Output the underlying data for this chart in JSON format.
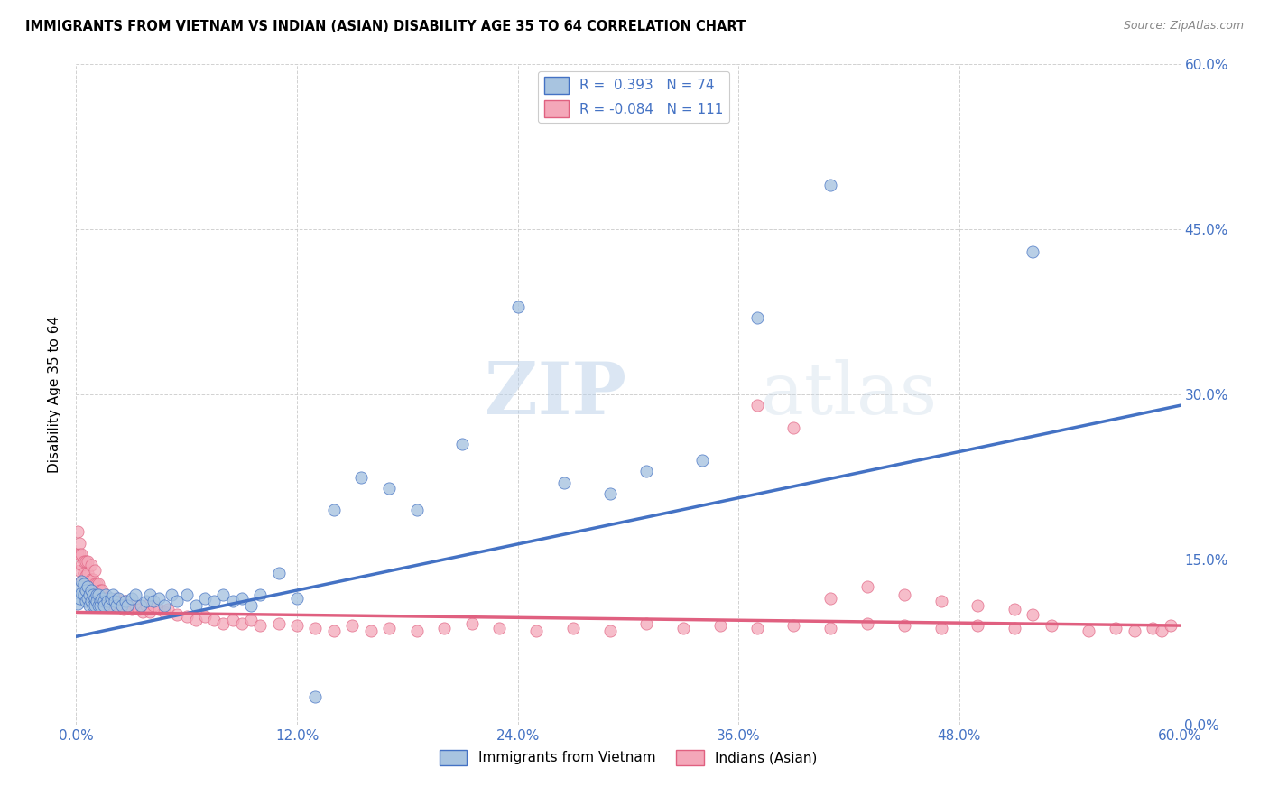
{
  "title": "IMMIGRANTS FROM VIETNAM VS INDIAN (ASIAN) DISABILITY AGE 35 TO 64 CORRELATION CHART",
  "source": "Source: ZipAtlas.com",
  "ylabel_label": "Disability Age 35 to 64",
  "legend_label1": "Immigrants from Vietnam",
  "legend_label2": "Indians (Asian)",
  "R1": 0.393,
  "N1": 74,
  "R2": -0.084,
  "N2": 111,
  "xlim": [
    0.0,
    0.6
  ],
  "ylim": [
    0.0,
    0.6
  ],
  "x_ticks": [
    0.0,
    0.12,
    0.24,
    0.36,
    0.48,
    0.6
  ],
  "y_ticks": [
    0.0,
    0.15,
    0.3,
    0.45,
    0.6
  ],
  "x_tick_labels": [
    "0.0%",
    "12.0%",
    "24.0%",
    "36.0%",
    "48.0%",
    "60.0%"
  ],
  "y_tick_labels_right": [
    "0.0%",
    "15.0%",
    "30.0%",
    "45.0%",
    "60.0%"
  ],
  "color_vietnam": "#a8c4e0",
  "color_indian": "#f4a7b9",
  "line_color_vietnam": "#4472c4",
  "line_color_indian": "#e06080",
  "watermark_zip": "ZIP",
  "watermark_atlas": "atlas",
  "regression_vietnam": [
    0.08,
    0.29
  ],
  "regression_indian": [
    0.102,
    0.09
  ],
  "vietnam_x": [
    0.001,
    0.002,
    0.002,
    0.003,
    0.003,
    0.004,
    0.004,
    0.005,
    0.005,
    0.006,
    0.006,
    0.007,
    0.007,
    0.008,
    0.008,
    0.009,
    0.009,
    0.01,
    0.01,
    0.011,
    0.011,
    0.012,
    0.012,
    0.013,
    0.013,
    0.014,
    0.015,
    0.015,
    0.016,
    0.017,
    0.018,
    0.019,
    0.02,
    0.021,
    0.022,
    0.023,
    0.025,
    0.027,
    0.028,
    0.03,
    0.032,
    0.035,
    0.038,
    0.04,
    0.042,
    0.045,
    0.048,
    0.052,
    0.055,
    0.06,
    0.065,
    0.07,
    0.075,
    0.08,
    0.085,
    0.09,
    0.095,
    0.1,
    0.11,
    0.12,
    0.13,
    0.14,
    0.155,
    0.17,
    0.185,
    0.21,
    0.24,
    0.265,
    0.29,
    0.31,
    0.34,
    0.37,
    0.41,
    0.52
  ],
  "vietnam_y": [
    0.11,
    0.125,
    0.115,
    0.12,
    0.13,
    0.118,
    0.128,
    0.112,
    0.122,
    0.115,
    0.125,
    0.118,
    0.108,
    0.122,
    0.112,
    0.118,
    0.108,
    0.115,
    0.108,
    0.118,
    0.112,
    0.108,
    0.118,
    0.112,
    0.108,
    0.115,
    0.112,
    0.108,
    0.118,
    0.112,
    0.108,
    0.115,
    0.118,
    0.112,
    0.108,
    0.115,
    0.108,
    0.112,
    0.108,
    0.115,
    0.118,
    0.108,
    0.112,
    0.118,
    0.112,
    0.115,
    0.108,
    0.118,
    0.112,
    0.118,
    0.108,
    0.115,
    0.112,
    0.118,
    0.112,
    0.115,
    0.108,
    0.118,
    0.138,
    0.115,
    0.025,
    0.195,
    0.225,
    0.215,
    0.195,
    0.255,
    0.38,
    0.22,
    0.21,
    0.23,
    0.24,
    0.37,
    0.49,
    0.43
  ],
  "indian_x": [
    0.001,
    0.001,
    0.002,
    0.002,
    0.002,
    0.003,
    0.003,
    0.003,
    0.004,
    0.004,
    0.004,
    0.005,
    0.005,
    0.005,
    0.006,
    0.006,
    0.006,
    0.007,
    0.007,
    0.008,
    0.008,
    0.008,
    0.009,
    0.009,
    0.01,
    0.01,
    0.01,
    0.011,
    0.011,
    0.012,
    0.012,
    0.013,
    0.013,
    0.014,
    0.014,
    0.015,
    0.015,
    0.016,
    0.016,
    0.017,
    0.018,
    0.019,
    0.02,
    0.021,
    0.022,
    0.023,
    0.025,
    0.026,
    0.027,
    0.028,
    0.03,
    0.032,
    0.034,
    0.036,
    0.038,
    0.04,
    0.042,
    0.045,
    0.048,
    0.05,
    0.055,
    0.06,
    0.065,
    0.07,
    0.075,
    0.08,
    0.085,
    0.09,
    0.095,
    0.1,
    0.11,
    0.12,
    0.13,
    0.14,
    0.15,
    0.16,
    0.17,
    0.185,
    0.2,
    0.215,
    0.23,
    0.25,
    0.27,
    0.29,
    0.31,
    0.33,
    0.35,
    0.37,
    0.39,
    0.41,
    0.43,
    0.45,
    0.47,
    0.49,
    0.51,
    0.53,
    0.55,
    0.565,
    0.575,
    0.585,
    0.59,
    0.595,
    0.37,
    0.39,
    0.41,
    0.43,
    0.45,
    0.47,
    0.49,
    0.51,
    0.52
  ],
  "indian_y": [
    0.175,
    0.155,
    0.155,
    0.14,
    0.165,
    0.145,
    0.13,
    0.155,
    0.138,
    0.125,
    0.148,
    0.135,
    0.148,
    0.125,
    0.138,
    0.122,
    0.148,
    0.128,
    0.118,
    0.132,
    0.118,
    0.145,
    0.122,
    0.132,
    0.118,
    0.128,
    0.14,
    0.118,
    0.128,
    0.118,
    0.128,
    0.112,
    0.122,
    0.112,
    0.122,
    0.115,
    0.108,
    0.115,
    0.108,
    0.115,
    0.108,
    0.112,
    0.108,
    0.112,
    0.115,
    0.108,
    0.112,
    0.105,
    0.112,
    0.108,
    0.105,
    0.108,
    0.105,
    0.102,
    0.108,
    0.102,
    0.108,
    0.105,
    0.102,
    0.105,
    0.1,
    0.098,
    0.095,
    0.098,
    0.095,
    0.092,
    0.095,
    0.092,
    0.095,
    0.09,
    0.092,
    0.09,
    0.088,
    0.085,
    0.09,
    0.085,
    0.088,
    0.085,
    0.088,
    0.092,
    0.088,
    0.085,
    0.088,
    0.085,
    0.092,
    0.088,
    0.09,
    0.088,
    0.09,
    0.088,
    0.092,
    0.09,
    0.088,
    0.09,
    0.088,
    0.09,
    0.085,
    0.088,
    0.085,
    0.088,
    0.085,
    0.09,
    0.29,
    0.27,
    0.115,
    0.125,
    0.118,
    0.112,
    0.108,
    0.105,
    0.1
  ]
}
